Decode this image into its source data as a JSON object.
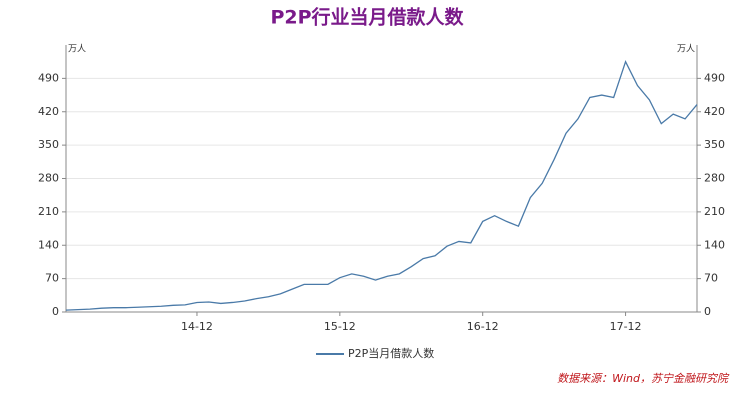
{
  "chart_data": {
    "type": "line",
    "title": "P2P行业当月借款人数",
    "y_unit": "万人",
    "y2_unit": "万人",
    "source": "数据来源：Wind，苏宁金融研究院",
    "categories": [
      null,
      null,
      null,
      null,
      null,
      null,
      null,
      null,
      null,
      null,
      null,
      "14-12",
      null,
      null,
      null,
      null,
      null,
      null,
      null,
      null,
      null,
      null,
      null,
      "15-12",
      null,
      null,
      null,
      null,
      null,
      null,
      null,
      null,
      null,
      null,
      null,
      "16-12",
      null,
      null,
      null,
      null,
      null,
      null,
      null,
      null,
      null,
      null,
      null,
      "17-12",
      null,
      null,
      null,
      null,
      null,
      null
    ],
    "series": [
      {
        "name": "P2P当月借款人数",
        "color": "#4a7aa8",
        "values": [
          4,
          5,
          6,
          8,
          9,
          9,
          10,
          11,
          12,
          14,
          15,
          20,
          21,
          18,
          20,
          23,
          28,
          32,
          38,
          48,
          58,
          58,
          58,
          72,
          80,
          75,
          67,
          75,
          80,
          95,
          112,
          118,
          138,
          148,
          145,
          190,
          202,
          190,
          180,
          240,
          270,
          320,
          375,
          405,
          450,
          455,
          450,
          525,
          475,
          445,
          395,
          415,
          405,
          435
        ]
      }
    ],
    "ylim": [
      0,
      560
    ],
    "yticks": [
      0,
      70,
      140,
      210,
      280,
      350,
      420,
      490
    ],
    "y2lim": [
      0,
      560
    ],
    "y2ticks": [
      0,
      70,
      140,
      210,
      280,
      350,
      420,
      490
    ],
    "grid": true
  }
}
